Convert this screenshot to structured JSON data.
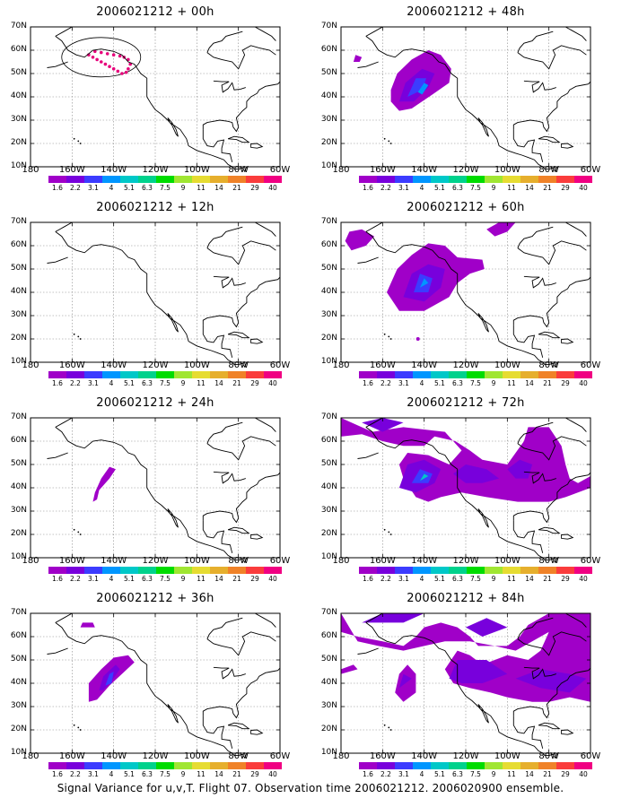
{
  "panels": [
    {
      "id": "p00",
      "title": "2006021212 + 00h",
      "level": "obs",
      "ellipse": true
    },
    {
      "id": "p48",
      "title": "2006021212 + 48h",
      "level": "medium"
    },
    {
      "id": "p12",
      "title": "2006021212 + 12h",
      "level": "none"
    },
    {
      "id": "p60",
      "title": "2006021212 + 60h",
      "level": "large"
    },
    {
      "id": "p24",
      "title": "2006021212 + 24h",
      "level": "small"
    },
    {
      "id": "p72",
      "title": "2006021212 + 72h",
      "level": "xlarge"
    },
    {
      "id": "p36",
      "title": "2006021212 + 36h",
      "level": "medium-small"
    },
    {
      "id": "p84",
      "title": "2006021212 + 84h",
      "level": "xxlarge"
    }
  ],
  "lat_labels": [
    "70N",
    "60N",
    "50N",
    "40N",
    "30N",
    "20N",
    "10N"
  ],
  "lon_labels": [
    "180",
    "160W",
    "140W",
    "120W",
    "100W",
    "80W",
    "60W"
  ],
  "colorbar": {
    "labels": [
      "1.6",
      "2.2",
      "3.1",
      "4",
      "5.1",
      "6.3",
      "7.5",
      "9",
      "11",
      "14",
      "21",
      "29",
      "40"
    ],
    "colors": [
      "#a000c8",
      "#7800dc",
      "#3c3cff",
      "#0096ff",
      "#00c8c8",
      "#00d28c",
      "#00dc00",
      "#a0e632",
      "#e6dc32",
      "#e6af2d",
      "#f08228",
      "#fa3c3c",
      "#f00082"
    ]
  },
  "caption": "Signal Variance for u,v,T. Flight 07. Observation time 2006021212. 2006020900 ensemble."
}
